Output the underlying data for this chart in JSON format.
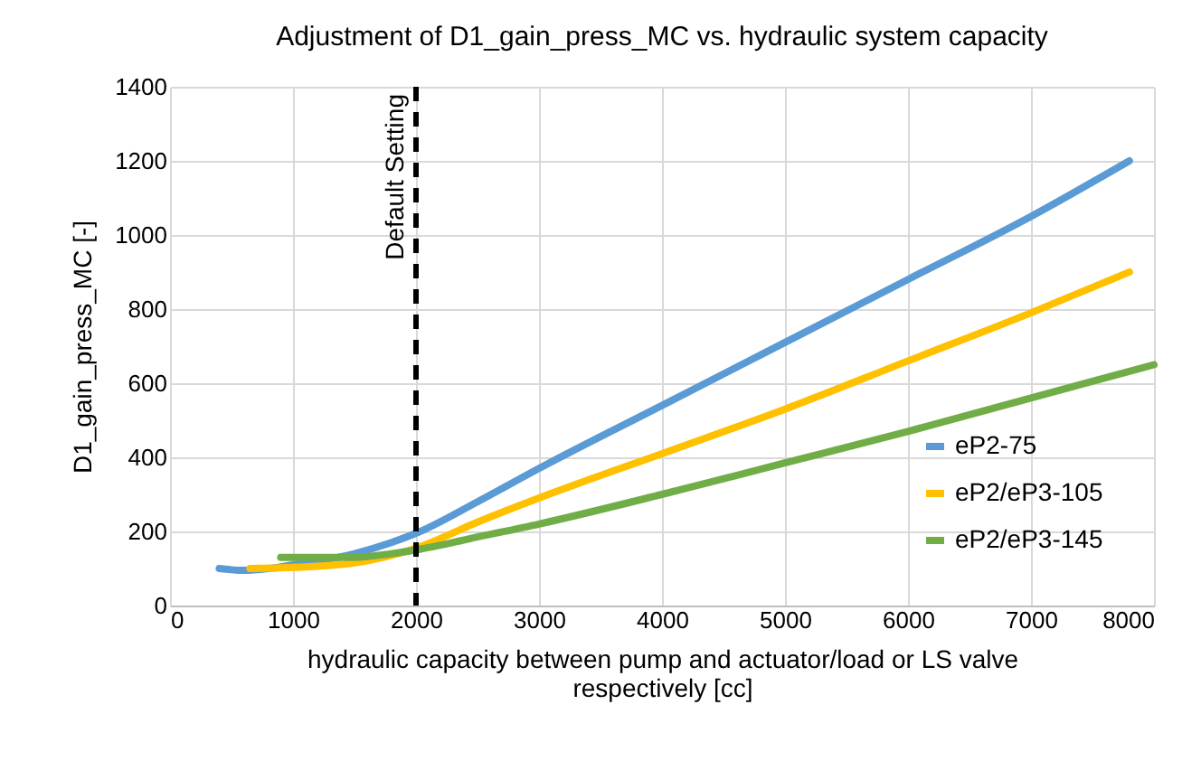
{
  "chart_data": {
    "type": "line",
    "title": "Adjustment of D1_gain_press_MC vs. hydraulic system capacity",
    "xlabel": "hydraulic capacity between pump and actuator/load or LS valve respectively [cc]",
    "ylabel": "D1_gain_press_MC [-]",
    "xlim": [
      0,
      8000
    ],
    "xticks": [
      0,
      1000,
      2000,
      3000,
      4000,
      5000,
      6000,
      7000,
      8000
    ],
    "ylim": [
      0,
      1400
    ],
    "yticks": [
      0,
      200,
      400,
      600,
      800,
      1000,
      1200,
      1400
    ],
    "grid": true,
    "legend": "bottom right",
    "line_style": "solid",
    "marker": "none",
    "ref_lines": [
      {
        "axis": "x",
        "value": 2000,
        "label": "Default Setting",
        "color": "#000000",
        "line_style": "dashed"
      }
    ],
    "series": [
      {
        "name": "eP2-75",
        "color": "#5b9bd5",
        "x": [
          400,
          600,
          800,
          1000,
          1200,
          1500,
          1800,
          2000,
          2500,
          3000,
          4000,
          5000,
          6000,
          7000,
          7800
        ],
        "values": [
          100,
          95,
          100,
          110,
          120,
          140,
          170,
          195,
          280,
          370,
          540,
          710,
          880,
          1050,
          1200
        ]
      },
      {
        "name": "eP2/eP3-105",
        "color": "#ffc000",
        "x": [
          650,
          1000,
          1500,
          2000,
          2500,
          3000,
          4000,
          5000,
          6000,
          7000,
          7800
        ],
        "values": [
          100,
          103,
          115,
          155,
          225,
          290,
          410,
          530,
          660,
          790,
          900
        ]
      },
      {
        "name": "eP2/eP3-145",
        "color": "#70ad47",
        "x": [
          900,
          1200,
          1500,
          1800,
          2000,
          2500,
          3000,
          4000,
          5000,
          6000,
          7000,
          8000
        ],
        "values": [
          130,
          130,
          130,
          140,
          150,
          185,
          220,
          300,
          385,
          470,
          560,
          650
        ]
      }
    ]
  }
}
